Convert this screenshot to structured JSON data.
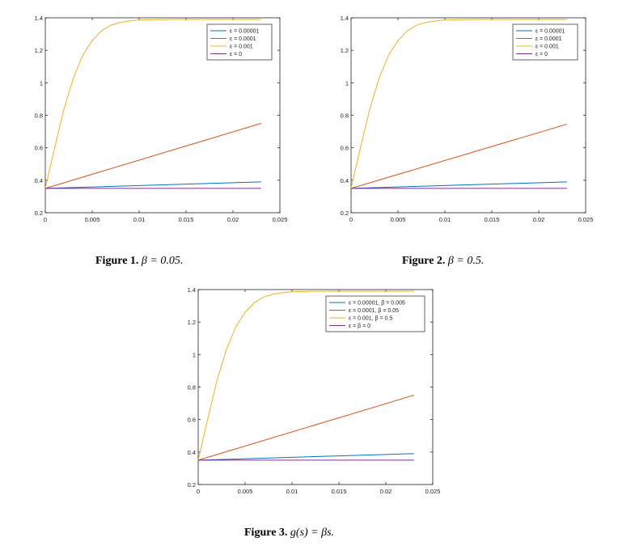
{
  "colors": {
    "blue": "#0072bd",
    "orange": "#d95319",
    "yellow": "#edb120",
    "purple": "#7e2f8e",
    "axis": "#262626"
  },
  "chart_data": [
    {
      "type": "line",
      "xlim": [
        0,
        0.025
      ],
      "ylim": [
        0.2,
        1.4
      ],
      "xticks": [
        "0",
        "0.005",
        "0.01",
        "0.015",
        "0.02",
        "0.025"
      ],
      "yticks": [
        "0.2",
        "0.4",
        "0.6",
        "0.8",
        "1",
        "1.2",
        "1.4"
      ],
      "legend_position": "top-right",
      "series": [
        {
          "name": "ε = 0.00001",
          "color": "blue",
          "x": [
            0,
            0.023
          ],
          "y": [
            0.35,
            0.39
          ]
        },
        {
          "name": "ε = 0.0001",
          "color": "orange",
          "x": [
            0,
            0.023
          ],
          "y": [
            0.35,
            0.75
          ]
        },
        {
          "name": "ε = 0.001",
          "color": "yellow",
          "x": [
            0,
            0.001,
            0.002,
            0.003,
            0.004,
            0.005,
            0.006,
            0.007,
            0.008,
            0.009,
            0.01,
            0.012,
            0.014,
            0.016,
            0.018,
            0.02,
            0.023
          ],
          "y": [
            0.35,
            0.6,
            0.84,
            1.03,
            1.17,
            1.26,
            1.32,
            1.355,
            1.372,
            1.381,
            1.386,
            1.389,
            1.39,
            1.39,
            1.39,
            1.39,
            1.39
          ]
        },
        {
          "name": "ε = 0",
          "color": "purple",
          "x": [
            0,
            0.023
          ],
          "y": [
            0.35,
            0.35
          ]
        }
      ]
    },
    {
      "type": "line",
      "xlim": [
        0,
        0.025
      ],
      "ylim": [
        0.2,
        1.4
      ],
      "xticks": [
        "0",
        "0.005",
        "0.01",
        "0.015",
        "0.02",
        "0.025"
      ],
      "yticks": [
        "0.2",
        "0.4",
        "0.6",
        "0.8",
        "1",
        "1.2",
        "1.4"
      ],
      "legend_position": "top-right",
      "series": [
        {
          "name": "ε = 0.00001",
          "color": "blue",
          "x": [
            0,
            0.023
          ],
          "y": [
            0.35,
            0.39
          ]
        },
        {
          "name": "ε = 0.0001",
          "color": "orange",
          "x": [
            0,
            0.023
          ],
          "y": [
            0.35,
            0.745
          ]
        },
        {
          "name": "ε = 0.001",
          "color": "yellow",
          "x": [
            0,
            0.001,
            0.002,
            0.003,
            0.004,
            0.005,
            0.006,
            0.007,
            0.008,
            0.009,
            0.01,
            0.012,
            0.014,
            0.016,
            0.018,
            0.02,
            0.023
          ],
          "y": [
            0.35,
            0.6,
            0.84,
            1.03,
            1.17,
            1.26,
            1.32,
            1.355,
            1.372,
            1.381,
            1.386,
            1.389,
            1.39,
            1.39,
            1.39,
            1.39,
            1.39
          ]
        },
        {
          "name": "ε = 0",
          "color": "purple",
          "x": [
            0,
            0.023
          ],
          "y": [
            0.35,
            0.35
          ]
        }
      ]
    },
    {
      "type": "line",
      "xlim": [
        0,
        0.025
      ],
      "ylim": [
        0.2,
        1.4
      ],
      "xticks": [
        "0",
        "0.005",
        "0.01",
        "0.015",
        "0.02",
        "0.025"
      ],
      "yticks": [
        "0.2",
        "0.4",
        "0.6",
        "0.8",
        "1",
        "1.2",
        "1.4"
      ],
      "legend_position": "top-right",
      "series": [
        {
          "name": "ε = 0.00001, β = 0.005",
          "color": "blue",
          "x": [
            0,
            0.023
          ],
          "y": [
            0.35,
            0.39
          ]
        },
        {
          "name": "ε = 0.0001, β = 0.05",
          "color": "orange",
          "x": [
            0,
            0.023
          ],
          "y": [
            0.35,
            0.75
          ]
        },
        {
          "name": "ε = 0.001, β = 0.5",
          "color": "yellow",
          "x": [
            0,
            0.001,
            0.002,
            0.003,
            0.004,
            0.005,
            0.006,
            0.007,
            0.008,
            0.009,
            0.01,
            0.012,
            0.014,
            0.016,
            0.018,
            0.02,
            0.023
          ],
          "y": [
            0.35,
            0.6,
            0.84,
            1.03,
            1.17,
            1.26,
            1.32,
            1.355,
            1.372,
            1.381,
            1.386,
            1.389,
            1.39,
            1.39,
            1.39,
            1.39,
            1.39
          ]
        },
        {
          "name": "ε = β = 0",
          "color": "purple",
          "x": [
            0,
            0.023
          ],
          "y": [
            0.35,
            0.35
          ]
        }
      ]
    }
  ],
  "captions": [
    {
      "label": "Figure 1.",
      "text": "β = 0.05."
    },
    {
      "label": "Figure 2.",
      "text": "β = 0.5."
    },
    {
      "label": "Figure 3.",
      "text": "g(s) = βs."
    }
  ]
}
